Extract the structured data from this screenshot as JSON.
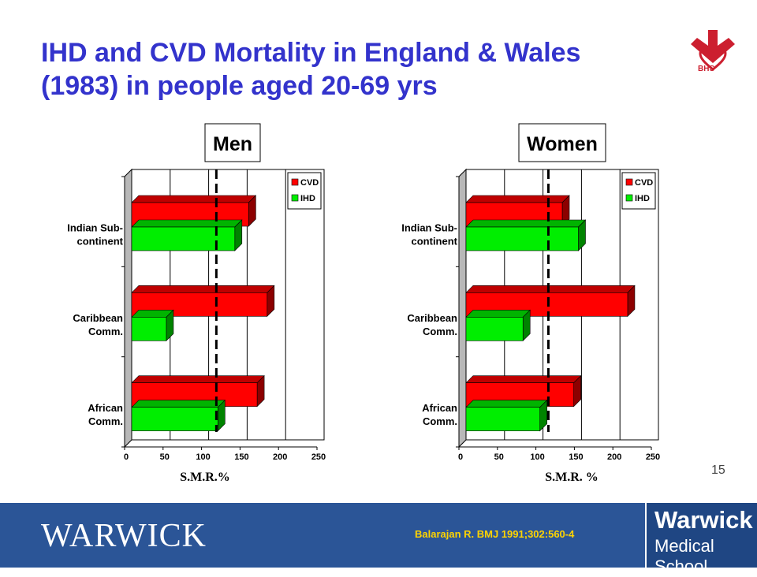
{
  "slide": {
    "title_line1": "IHD and CVD Mortality in England & Wales",
    "title_line2": "(1983) in people aged 20-69 yrs",
    "slide_number": "15"
  },
  "logo": {
    "text": "BHS",
    "icon": "bhs-heart-arrow-icon"
  },
  "footer": {
    "warwick": "WARWICK",
    "citation": "Balarajan R. BMJ 1991;302:560-4",
    "school_line1": "Warwick",
    "school_line2": "Medical School"
  },
  "colors": {
    "title": "#3333cc",
    "cvd": "#ff0000",
    "ihd": "#00ee00",
    "footer": "#2b5597",
    "citation": "#ffd400"
  },
  "chart_data": [
    {
      "type": "bar",
      "orientation": "horizontal",
      "title": "Men",
      "categories": [
        "Indian Sub-continent",
        "Caribbean Comm.",
        "African Comm."
      ],
      "category_lines": [
        [
          "Indian Sub-",
          "continent"
        ],
        [
          "Caribbean",
          "Comm."
        ],
        [
          "African",
          "Comm."
        ]
      ],
      "series": [
        {
          "name": "CVD",
          "values": [
            152,
            176,
            163
          ]
        },
        {
          "name": "IHD",
          "values": [
            134,
            45,
            112
          ]
        }
      ],
      "xlabel": "S.M.R.%",
      "xlim": [
        0,
        250
      ],
      "xticks": [
        "0",
        "50",
        "100",
        "150",
        "200",
        "250"
      ],
      "reference_line": 110,
      "legend": "top-right",
      "grid": true
    },
    {
      "type": "bar",
      "orientation": "horizontal",
      "title": "Women",
      "categories": [
        "Indian Sub-continent",
        "Caribbean Comm.",
        "African Comm."
      ],
      "category_lines": [
        [
          "Indian Sub-",
          "continent"
        ],
        [
          "Caribbean",
          "Comm."
        ],
        [
          "African",
          "Comm."
        ]
      ],
      "series": [
        {
          "name": "CVD",
          "values": [
            125,
            210,
            140
          ]
        },
        {
          "name": "IHD",
          "values": [
            146,
            74,
            96
          ]
        }
      ],
      "xlabel": "S.M.R. %",
      "xlim": [
        0,
        250
      ],
      "xticks": [
        "0",
        "50",
        "100",
        "150",
        "200",
        "250"
      ],
      "reference_line": 107,
      "legend": "top-right",
      "grid": true
    }
  ]
}
